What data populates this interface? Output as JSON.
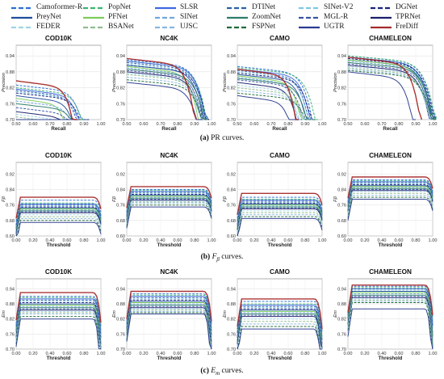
{
  "legend": [
    {
      "name": "Camoformer-R",
      "color": "#2a6fd3",
      "dash": "6,3"
    },
    {
      "name": "PopNet",
      "color": "#3cb371",
      "dash": "6,3"
    },
    {
      "name": "SLSR",
      "color": "#4169e1",
      "dash": ""
    },
    {
      "name": "DTINet",
      "color": "#2b5fa8",
      "dash": "6,3"
    },
    {
      "name": "SINet-V2",
      "color": "#7ec8e3",
      "dash": "6,3"
    },
    {
      "name": "DGNet",
      "color": "#1a237e",
      "dash": "6,3"
    },
    {
      "name": "PreyNet",
      "color": "#1f4e9c",
      "dash": ""
    },
    {
      "name": "PFNet",
      "color": "#7ccd5a",
      "dash": ""
    },
    {
      "name": "SINet",
      "color": "#6fa8dc",
      "dash": "6,3"
    },
    {
      "name": "ZoomNet",
      "color": "#2e7d6b",
      "dash": ""
    },
    {
      "name": "MGL-R",
      "color": "#3a53a4",
      "dash": "6,3"
    },
    {
      "name": "TPRNet",
      "color": "#1b1f6b",
      "dash": ""
    },
    {
      "name": "FEDER",
      "color": "#9fd3e6",
      "dash": "6,3"
    },
    {
      "name": "BSANet",
      "color": "#8fbc8f",
      "dash": "6,3"
    },
    {
      "name": "UJSC",
      "color": "#87b6e0",
      "dash": "6,3"
    },
    {
      "name": "FSPNet",
      "color": "#1e6b3a",
      "dash": "6,3"
    },
    {
      "name": "UGTR",
      "color": "#2a3a8f",
      "dash": ""
    },
    {
      "name": "FreDiff",
      "color": "#a52a2a",
      "dash": ""
    }
  ],
  "captions": [
    {
      "letter": "(a)",
      "text": "PR curves."
    },
    {
      "letter": "(b)",
      "symbol": "F",
      "sub": "β",
      "text": "curves."
    },
    {
      "letter": "(c)",
      "symbol": "E",
      "sub": "m",
      "text": "curves."
    }
  ],
  "chart_data": [
    {
      "row": "pr",
      "type": "line",
      "title": "COD10K",
      "xlabel": "Recall",
      "ylabel": "Precision",
      "xlim": [
        0.5,
        1.0
      ],
      "ylim": [
        0.7,
        0.98
      ],
      "xticks": [
        "0.50",
        "0.60",
        "0.70",
        "0.80",
        "0.90",
        "1.00"
      ],
      "yticks": [
        "0.70",
        "0.76",
        "0.82",
        "0.88",
        "0.94"
      ]
    },
    {
      "row": "pr",
      "type": "line",
      "title": "NC4K",
      "xlabel": "Recall",
      "ylabel": "Precision",
      "xlim": [
        0.5,
        1.0
      ],
      "ylim": [
        0.7,
        0.98
      ],
      "xticks": [
        "0.50",
        "0.60",
        "0.70",
        "0.80",
        "0.90",
        "1.00"
      ],
      "yticks": [
        "0.70",
        "0.76",
        "0.82",
        "0.88",
        "0.94"
      ]
    },
    {
      "row": "pr",
      "type": "line",
      "title": "CAMO",
      "xlabel": "Recall",
      "ylabel": "Precision",
      "xlim": [
        0.5,
        1.0
      ],
      "ylim": [
        0.7,
        0.98
      ],
      "xticks": [
        "0.50",
        "0.60",
        "0.70",
        "0.80",
        "0.90",
        "1.00"
      ],
      "yticks": [
        "0.70",
        "0.76",
        "0.82",
        "0.88",
        "0.94"
      ]
    },
    {
      "row": "pr",
      "type": "line",
      "title": "CHAMELEON",
      "xlabel": "Recall",
      "ylabel": "Precision",
      "xlim": [
        0.5,
        1.0
      ],
      "ylim": [
        0.7,
        0.98
      ],
      "xticks": [
        "0.50",
        "0.60",
        "0.70",
        "0.80",
        "0.90",
        "1.00"
      ],
      "yticks": [
        "0.70",
        "0.76",
        "0.82",
        "0.88",
        "0.94"
      ]
    },
    {
      "row": "fm",
      "type": "line",
      "title": "COD10K",
      "xlabel": "Threshold",
      "ylabel": "Fβ",
      "xlim": [
        0,
        1
      ],
      "ylim": [
        0.6,
        0.98
      ],
      "xticks": [
        "0.00",
        "0.20",
        "0.40",
        "0.60",
        "0.80",
        "1.00"
      ],
      "yticks": [
        "0.60",
        "0.68",
        "0.76",
        "0.84",
        "0.92"
      ]
    },
    {
      "row": "fm",
      "type": "line",
      "title": "NC4K",
      "xlabel": "Threshold",
      "ylabel": "Fβ",
      "xlim": [
        0,
        1
      ],
      "ylim": [
        0.6,
        0.98
      ],
      "xticks": [
        "0.00",
        "0.20",
        "0.40",
        "0.60",
        "0.80",
        "1.00"
      ],
      "yticks": [
        "0.60",
        "0.68",
        "0.76",
        "0.84",
        "0.92"
      ]
    },
    {
      "row": "fm",
      "type": "line",
      "title": "CAMO",
      "xlabel": "Threshold",
      "ylabel": "Fβ",
      "xlim": [
        0,
        1
      ],
      "ylim": [
        0.6,
        0.98
      ],
      "xticks": [
        "0.00",
        "0.20",
        "0.40",
        "0.60",
        "0.80",
        "1.00"
      ],
      "yticks": [
        "0.60",
        "0.68",
        "0.76",
        "0.84",
        "0.92"
      ]
    },
    {
      "row": "fm",
      "type": "line",
      "title": "CHAMELEON",
      "xlabel": "Threshold",
      "ylabel": "Fβ",
      "xlim": [
        0,
        1
      ],
      "ylim": [
        0.6,
        0.98
      ],
      "xticks": [
        "0.00",
        "0.20",
        "0.40",
        "0.60",
        "0.80",
        "1.00"
      ],
      "yticks": [
        "0.60",
        "0.68",
        "0.76",
        "0.84",
        "0.92"
      ]
    },
    {
      "row": "em",
      "type": "line",
      "title": "COD10K",
      "xlabel": "Threshold",
      "ylabel": "Em",
      "xlim": [
        0,
        1
      ],
      "ylim": [
        0.7,
        0.98
      ],
      "xticks": [
        "0.00",
        "0.20",
        "0.40",
        "0.60",
        "0.80",
        "1.00"
      ],
      "yticks": [
        "0.70",
        "0.76",
        "0.82",
        "0.88",
        "0.94"
      ]
    },
    {
      "row": "em",
      "type": "line",
      "title": "NC4K",
      "xlabel": "Threshold",
      "ylabel": "Em",
      "xlim": [
        0,
        1
      ],
      "ylim": [
        0.7,
        0.98
      ],
      "xticks": [
        "0.00",
        "0.20",
        "0.40",
        "0.60",
        "0.80",
        "1.00"
      ],
      "yticks": [
        "0.70",
        "0.76",
        "0.82",
        "0.88",
        "0.94"
      ]
    },
    {
      "row": "em",
      "type": "line",
      "title": "CAMO",
      "xlabel": "Threshold",
      "ylabel": "Em",
      "xlim": [
        0,
        1
      ],
      "ylim": [
        0.7,
        0.98
      ],
      "xticks": [
        "0.00",
        "0.20",
        "0.40",
        "0.60",
        "0.80",
        "1.00"
      ],
      "yticks": [
        "0.70",
        "0.76",
        "0.82",
        "0.88",
        "0.94"
      ]
    },
    {
      "row": "em",
      "type": "line",
      "title": "CHAMELEON",
      "xlabel": "Threshold",
      "ylabel": "Em",
      "xlim": [
        0,
        1
      ],
      "ylim": [
        0.7,
        0.98
      ],
      "xticks": [
        "0.00",
        "0.20",
        "0.40",
        "0.60",
        "0.80",
        "1.00"
      ],
      "yticks": [
        "0.70",
        "0.76",
        "0.82",
        "0.88",
        "0.94"
      ]
    }
  ],
  "curve_levels": {
    "pr": {
      "COD10K": {
        "FreDiff": [
          0.846,
          0.86
        ],
        "others": [
          0.83,
          0.82,
          0.815,
          0.81,
          0.805,
          0.8,
          0.79,
          0.78,
          0.77,
          0.76,
          0.745,
          0.73,
          0.72,
          0.71,
          0.7,
          0.695,
          0.68
        ],
        "ends": [
          0.84,
          0.85,
          0.83,
          0.82,
          0.83,
          0.85,
          0.8,
          0.75,
          0.8,
          0.82,
          0.81,
          0.79,
          0.78,
          0.8,
          0.81,
          0.82,
          0.79
        ]
      },
      "NC4K": {
        "FreDiff": [
          0.93,
          0.91
        ],
        "others": [
          0.925,
          0.92,
          0.92,
          0.915,
          0.91,
          0.905,
          0.905,
          0.9,
          0.895,
          0.89,
          0.885,
          0.88,
          0.875,
          0.87,
          0.86,
          0.85,
          0.84
        ],
        "ends": [
          0.9,
          0.905,
          0.9,
          0.895,
          0.9,
          0.905,
          0.89,
          0.86,
          0.88,
          0.9,
          0.89,
          0.88,
          0.88,
          0.89,
          0.895,
          0.9,
          0.87
        ]
      },
      "CAMO": {
        "FreDiff": [
          0.89,
          0.86
        ],
        "others": [
          0.9,
          0.895,
          0.89,
          0.885,
          0.88,
          0.875,
          0.87,
          0.865,
          0.86,
          0.855,
          0.85,
          0.84,
          0.83,
          0.82,
          0.81,
          0.8,
          0.79
        ],
        "ends": [
          0.88,
          0.9,
          0.87,
          0.86,
          0.86,
          0.88,
          0.85,
          0.82,
          0.8,
          0.86,
          0.84,
          0.8,
          0.82,
          0.85,
          0.86,
          0.88,
          0.77
        ]
      },
      "CHAMELEON": {
        "FreDiff": [
          0.935,
          0.935
        ],
        "others": [
          0.94,
          0.94,
          0.935,
          0.935,
          0.93,
          0.93,
          0.925,
          0.925,
          0.92,
          0.915,
          0.91,
          0.905,
          0.9,
          0.895,
          0.89,
          0.885,
          0.88
        ],
        "ends": [
          0.94,
          0.945,
          0.93,
          0.93,
          0.93,
          0.94,
          0.93,
          0.92,
          0.92,
          0.94,
          0.93,
          0.92,
          0.92,
          0.93,
          0.93,
          0.94,
          0.82
        ]
      }
    },
    "fm": {
      "COD10K": {
        "FreDiff": 0.8,
        "others": [
          0.785,
          0.77,
          0.765,
          0.76,
          0.755,
          0.75,
          0.745,
          0.74,
          0.735,
          0.73,
          0.725,
          0.72,
          0.71,
          0.7,
          0.69,
          0.68,
          0.67
        ]
      },
      "NC4K": {
        "FreDiff": 0.855,
        "others": [
          0.84,
          0.835,
          0.83,
          0.825,
          0.82,
          0.815,
          0.81,
          0.805,
          0.8,
          0.795,
          0.79,
          0.785,
          0.78,
          0.775,
          0.77,
          0.76,
          0.75
        ]
      },
      "CAMO": {
        "FreDiff": 0.82,
        "others": [
          0.8,
          0.79,
          0.785,
          0.78,
          0.775,
          0.77,
          0.765,
          0.76,
          0.755,
          0.75,
          0.745,
          0.74,
          0.73,
          0.72,
          0.71,
          0.7,
          0.69
        ]
      },
      "CHAMELEON": {
        "FreDiff": 0.905,
        "others": [
          0.89,
          0.885,
          0.88,
          0.875,
          0.87,
          0.865,
          0.86,
          0.855,
          0.85,
          0.845,
          0.84,
          0.835,
          0.83,
          0.82,
          0.81,
          0.8,
          0.79
        ]
      }
    },
    "em": {
      "COD10K": {
        "FreDiff": 0.925,
        "others": [
          0.91,
          0.905,
          0.9,
          0.895,
          0.89,
          0.885,
          0.88,
          0.875,
          0.87,
          0.865,
          0.86,
          0.855,
          0.85,
          0.845,
          0.84,
          0.83,
          0.82
        ]
      },
      "NC4K": {
        "FreDiff": 0.93,
        "others": [
          0.92,
          0.915,
          0.91,
          0.905,
          0.9,
          0.895,
          0.89,
          0.885,
          0.88,
          0.875,
          0.87,
          0.865,
          0.86,
          0.855,
          0.85,
          0.845,
          0.84
        ]
      },
      "CAMO": {
        "FreDiff": 0.9,
        "others": [
          0.89,
          0.88,
          0.875,
          0.87,
          0.865,
          0.86,
          0.855,
          0.85,
          0.845,
          0.84,
          0.835,
          0.83,
          0.82,
          0.81,
          0.8,
          0.79,
          0.78
        ]
      },
      "CHAMELEON": {
        "FreDiff": 0.955,
        "others": [
          0.95,
          0.945,
          0.94,
          0.94,
          0.935,
          0.93,
          0.93,
          0.925,
          0.92,
          0.915,
          0.91,
          0.905,
          0.9,
          0.895,
          0.89,
          0.885,
          0.86
        ]
      }
    }
  }
}
